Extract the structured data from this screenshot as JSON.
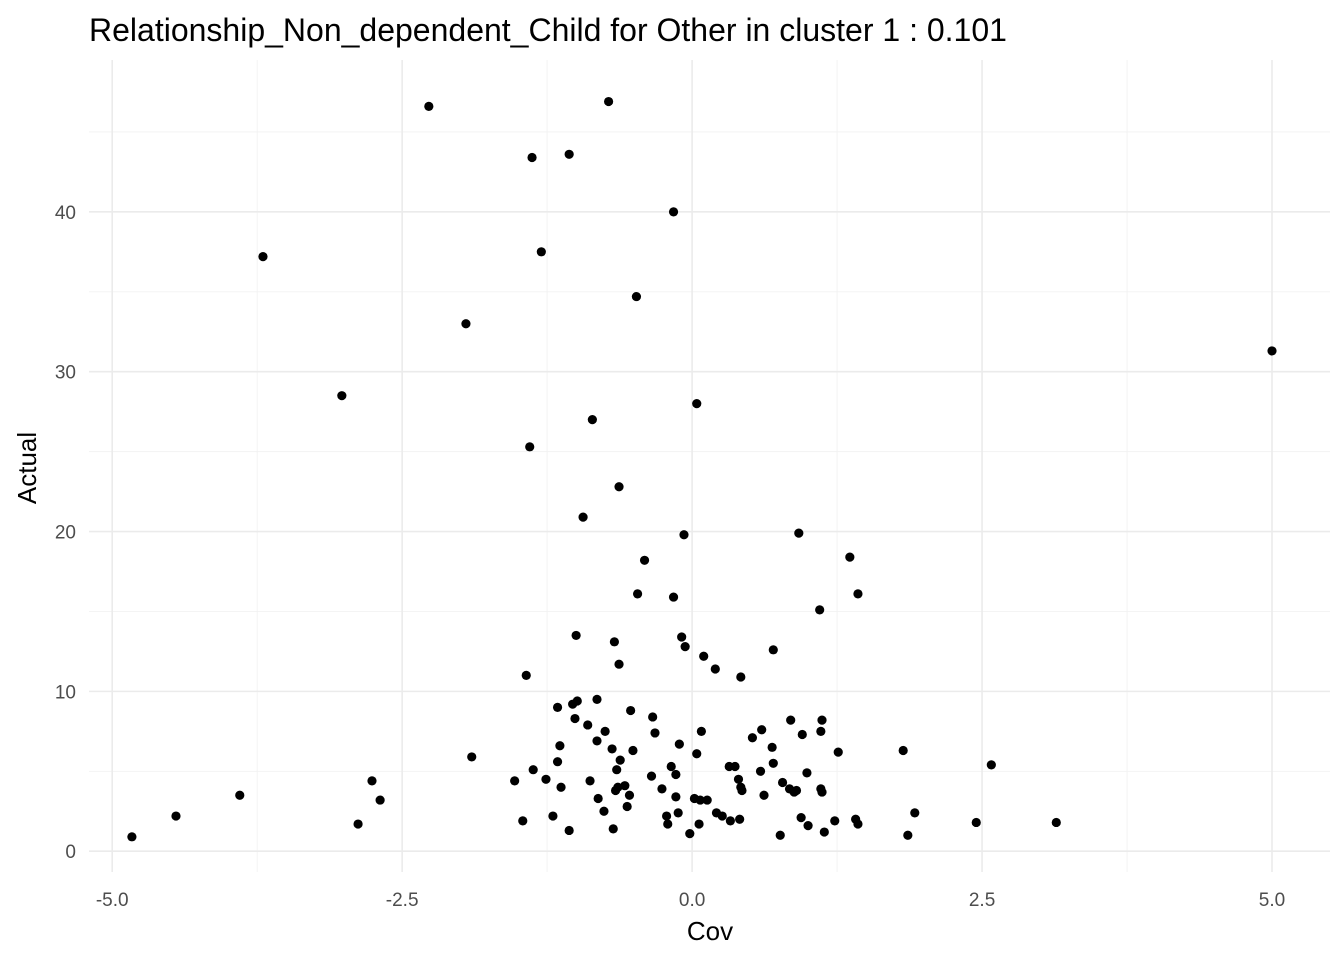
{
  "chart_data": {
    "type": "scatter",
    "title": "Relationship_Non_dependent_Child for Other in cluster 1 : 0.101",
    "xlabel": "Cov",
    "ylabel": "Actual",
    "xlim": [
      -5.2,
      5.5
    ],
    "ylim": [
      -1.3,
      49.5
    ],
    "x_ticks": [
      -5.0,
      -2.5,
      0.0,
      2.5,
      5.0
    ],
    "x_tick_labels": [
      "-5.0",
      "-2.5",
      "0.0",
      "2.5",
      "5.0"
    ],
    "y_ticks": [
      0,
      10,
      20,
      30,
      40
    ],
    "y_tick_labels": [
      "0",
      "10",
      "20",
      "30",
      "40"
    ],
    "grid": true,
    "legend": "none",
    "point_color": "#000000",
    "points": [
      [
        -4.83,
        0.9
      ],
      [
        -4.45,
        2.2
      ],
      [
        -3.9,
        3.5
      ],
      [
        -3.7,
        37.2
      ],
      [
        -3.02,
        28.5
      ],
      [
        -2.88,
        1.7
      ],
      [
        -2.76,
        4.4
      ],
      [
        -2.69,
        3.2
      ],
      [
        -2.27,
        46.6
      ],
      [
        -1.95,
        33.0
      ],
      [
        -1.9,
        5.9
      ],
      [
        -1.53,
        4.4
      ],
      [
        -1.46,
        1.9
      ],
      [
        -1.43,
        11.0
      ],
      [
        -1.4,
        25.3
      ],
      [
        -1.38,
        43.4
      ],
      [
        -1.37,
        5.1
      ],
      [
        -1.3,
        37.5
      ],
      [
        -1.26,
        4.5
      ],
      [
        -1.2,
        2.2
      ],
      [
        -1.16,
        9.0
      ],
      [
        -1.16,
        5.6
      ],
      [
        -1.14,
        6.6
      ],
      [
        -1.13,
        4.0
      ],
      [
        -1.06,
        43.6
      ],
      [
        -1.06,
        1.3
      ],
      [
        -1.03,
        9.2
      ],
      [
        -1.01,
        8.3
      ],
      [
        -1.0,
        13.5
      ],
      [
        -0.99,
        9.4
      ],
      [
        -0.94,
        20.9
      ],
      [
        -0.9,
        7.9
      ],
      [
        -0.88,
        4.4
      ],
      [
        -0.86,
        27.0
      ],
      [
        -0.82,
        9.5
      ],
      [
        -0.82,
        6.9
      ],
      [
        -0.81,
        3.3
      ],
      [
        -0.76,
        2.5
      ],
      [
        -0.75,
        7.5
      ],
      [
        -0.72,
        46.9
      ],
      [
        -0.69,
        6.4
      ],
      [
        -0.68,
        1.4
      ],
      [
        -0.67,
        13.1
      ],
      [
        -0.66,
        3.8
      ],
      [
        -0.65,
        5.1
      ],
      [
        -0.64,
        4.0
      ],
      [
        -0.63,
        22.8
      ],
      [
        -0.63,
        11.7
      ],
      [
        -0.62,
        5.7
      ],
      [
        -0.58,
        4.1
      ],
      [
        -0.56,
        2.8
      ],
      [
        -0.54,
        3.5
      ],
      [
        -0.53,
        8.8
      ],
      [
        -0.51,
        6.3
      ],
      [
        -0.48,
        34.7
      ],
      [
        -0.47,
        16.1
      ],
      [
        -0.41,
        18.2
      ],
      [
        -0.35,
        4.7
      ],
      [
        -0.34,
        8.4
      ],
      [
        -0.32,
        7.4
      ],
      [
        -0.26,
        3.9
      ],
      [
        -0.22,
        2.2
      ],
      [
        -0.21,
        1.7
      ],
      [
        -0.18,
        5.3
      ],
      [
        -0.16,
        40.0
      ],
      [
        -0.16,
        15.9
      ],
      [
        -0.14,
        3.4
      ],
      [
        -0.14,
        4.8
      ],
      [
        -0.12,
        2.4
      ],
      [
        -0.11,
        6.7
      ],
      [
        -0.09,
        13.4
      ],
      [
        -0.07,
        19.8
      ],
      [
        -0.06,
        12.8
      ],
      [
        -0.02,
        1.1
      ],
      [
        0.02,
        3.3
      ],
      [
        0.04,
        28.0
      ],
      [
        0.04,
        6.1
      ],
      [
        0.06,
        1.7
      ],
      [
        0.07,
        3.2
      ],
      [
        0.08,
        7.5
      ],
      [
        0.1,
        12.2
      ],
      [
        0.13,
        3.2
      ],
      [
        0.2,
        11.4
      ],
      [
        0.21,
        2.4
      ],
      [
        0.26,
        2.2
      ],
      [
        0.32,
        5.3
      ],
      [
        0.33,
        1.9
      ],
      [
        0.37,
        5.3
      ],
      [
        0.4,
        4.5
      ],
      [
        0.41,
        2.0
      ],
      [
        0.42,
        10.9
      ],
      [
        0.42,
        4.0
      ],
      [
        0.43,
        3.8
      ],
      [
        0.52,
        7.1
      ],
      [
        0.59,
        5.0
      ],
      [
        0.6,
        7.6
      ],
      [
        0.62,
        3.5
      ],
      [
        0.69,
        6.5
      ],
      [
        0.7,
        5.5
      ],
      [
        0.7,
        12.6
      ],
      [
        0.76,
        1.0
      ],
      [
        0.78,
        4.3
      ],
      [
        0.84,
        3.9
      ],
      [
        0.85,
        8.2
      ],
      [
        0.88,
        3.7
      ],
      [
        0.9,
        3.8
      ],
      [
        0.92,
        19.9
      ],
      [
        0.94,
        2.1
      ],
      [
        0.95,
        7.3
      ],
      [
        0.99,
        4.9
      ],
      [
        1.0,
        1.6
      ],
      [
        1.1,
        15.1
      ],
      [
        1.11,
        3.9
      ],
      [
        1.11,
        7.5
      ],
      [
        1.12,
        3.7
      ],
      [
        1.12,
        8.2
      ],
      [
        1.14,
        1.2
      ],
      [
        1.23,
        1.9
      ],
      [
        1.26,
        6.2
      ],
      [
        1.36,
        18.4
      ],
      [
        1.41,
        2.0
      ],
      [
        1.43,
        16.1
      ],
      [
        1.43,
        1.7
      ],
      [
        1.82,
        6.3
      ],
      [
        1.86,
        1.0
      ],
      [
        1.92,
        2.4
      ],
      [
        2.45,
        1.8
      ],
      [
        2.58,
        5.4
      ],
      [
        3.14,
        1.8
      ],
      [
        5.0,
        31.3
      ]
    ]
  }
}
